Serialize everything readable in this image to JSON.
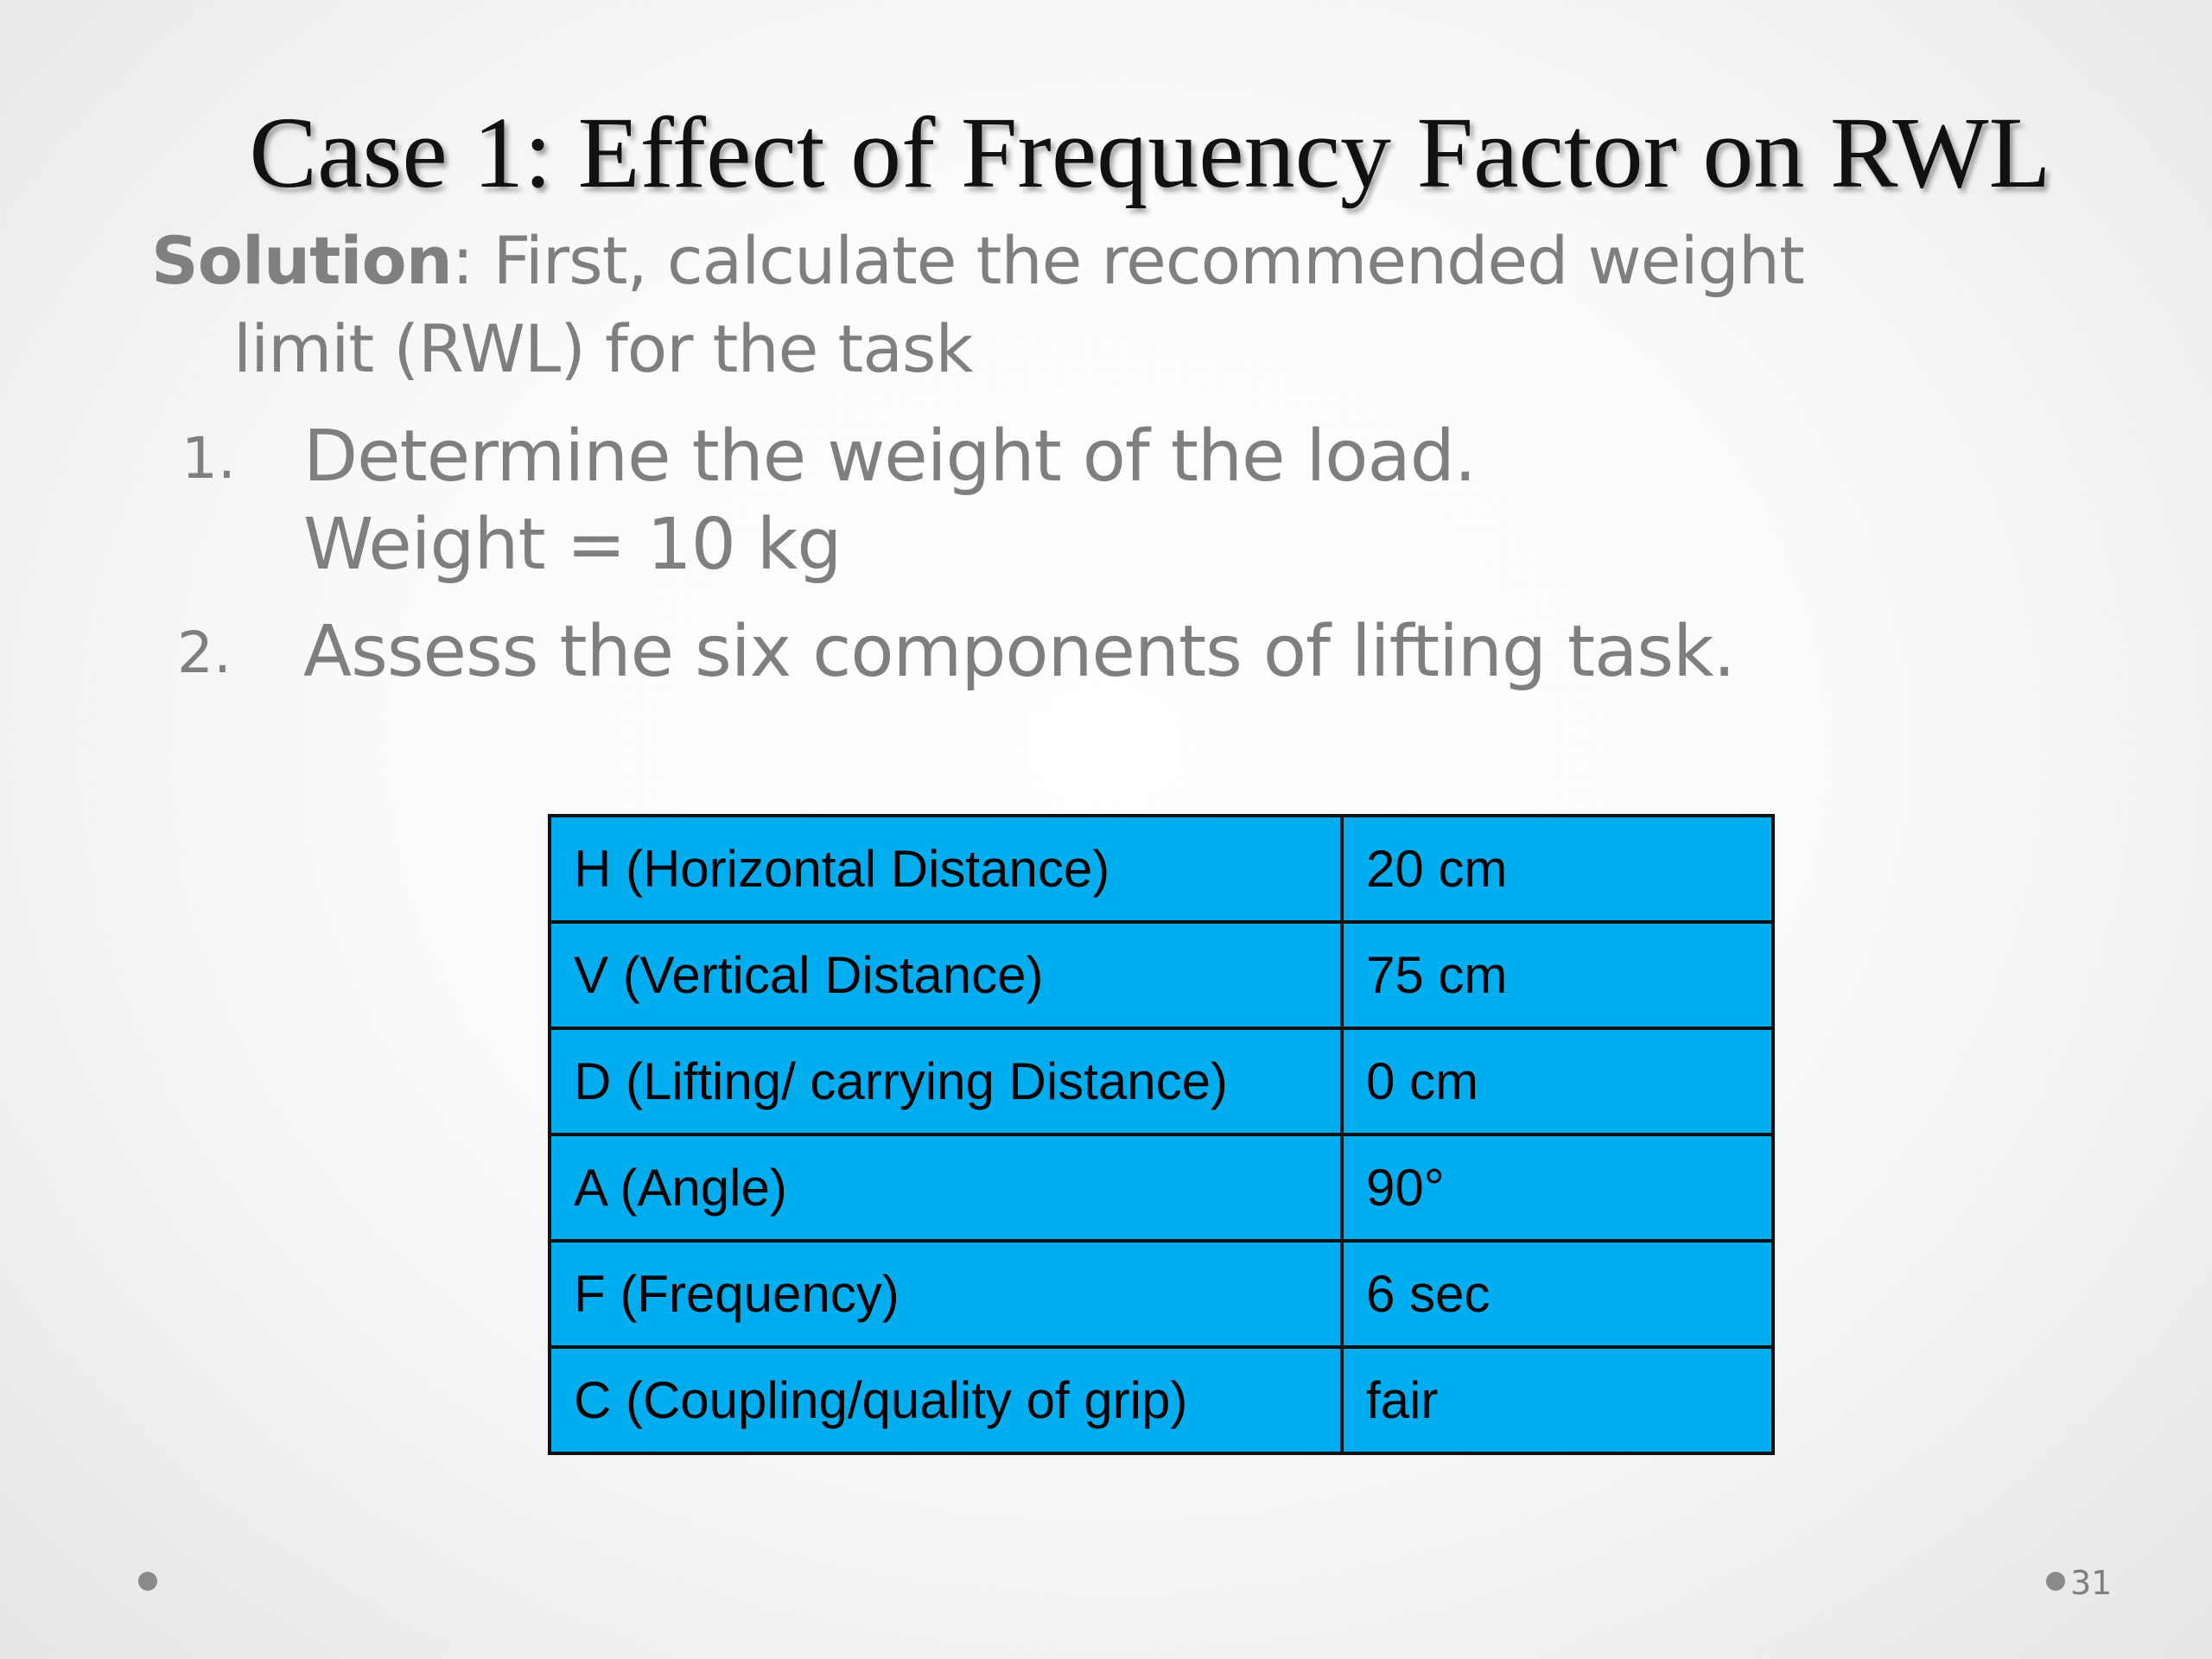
{
  "title": "Case 1: Effect of Frequency Factor on RWL",
  "solution": {
    "label": "Solution",
    "line1": ": First, calculate the recommended weight",
    "line2": "limit (RWL) for the task"
  },
  "steps": [
    {
      "number": "1.",
      "text": "Determine the weight of the load.",
      "detail": "Weight = 10 kg"
    },
    {
      "number": "2.",
      "text": "Assess the six components of lifting task."
    }
  ],
  "table": {
    "rows": [
      [
        "H (Horizontal Distance)",
        "20 cm"
      ],
      [
        "V (Vertical Distance)",
        "75 cm"
      ],
      [
        "D (Lifting/ carrying Distance)",
        "0 cm"
      ],
      [
        "A (Angle)",
        "90°"
      ],
      [
        "F (Frequency)",
        "6 sec"
      ],
      [
        "C (Coupling/quality of grip)",
        "fair"
      ]
    ]
  },
  "page_number": "31"
}
